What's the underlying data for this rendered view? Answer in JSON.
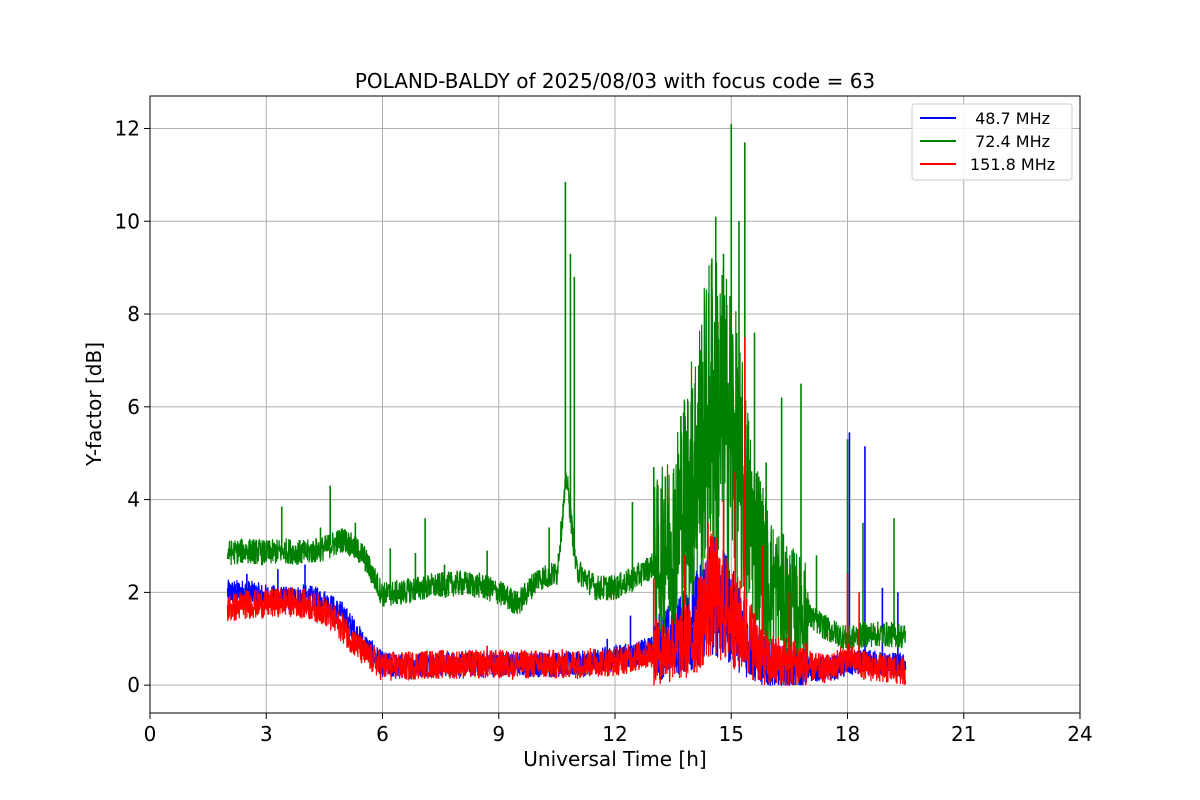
{
  "chart_data": {
    "type": "line",
    "title": "POLAND-BALDY of 2025/08/03 with focus code = 63",
    "xlabel": "Universal Time [h]",
    "ylabel": "Y-factor [dB]",
    "xlim": [
      0,
      24
    ],
    "ylim": [
      -0.6,
      12.7
    ],
    "xticks": [
      0,
      3,
      6,
      9,
      12,
      15,
      18,
      21,
      24
    ],
    "yticks": [
      0,
      2,
      4,
      6,
      8,
      10,
      12
    ],
    "grid": true,
    "legend_position": "top-right",
    "series": [
      {
        "name": " 48.7 MHz",
        "color": "#0000ff",
        "x": [
          2.0,
          2.5,
          3.0,
          3.5,
          4.0,
          4.5,
          5.0,
          5.5,
          6.0,
          6.5,
          7.0,
          8.0,
          9.0,
          10.0,
          11.0,
          11.5,
          12.0,
          12.5,
          13.0,
          13.5,
          14.0,
          14.5,
          15.0,
          15.5,
          16.0,
          16.5,
          17.0,
          17.5,
          18.0,
          18.5,
          19.0,
          19.5
        ],
        "values": [
          2.0,
          2.0,
          1.9,
          1.85,
          1.9,
          1.8,
          1.5,
          0.9,
          0.45,
          0.4,
          0.45,
          0.45,
          0.45,
          0.45,
          0.45,
          0.5,
          0.6,
          0.65,
          0.8,
          1.0,
          1.3,
          2.0,
          1.5,
          0.8,
          0.4,
          0.35,
          0.35,
          0.35,
          0.45,
          0.5,
          0.45,
          0.4
        ],
        "spikes": [
          [
            2.5,
            2.4
          ],
          [
            3.3,
            2.5
          ],
          [
            4.0,
            2.6
          ],
          [
            11.8,
            1.0
          ],
          [
            12.4,
            1.5
          ],
          [
            13.0,
            2.2
          ],
          [
            13.5,
            2.5
          ],
          [
            14.0,
            2.8
          ],
          [
            18.05,
            5.45
          ],
          [
            18.45,
            5.15
          ],
          [
            18.9,
            2.1
          ],
          [
            19.3,
            2.0
          ]
        ]
      },
      {
        "name": " 72.4 MHz",
        "color": "#008000",
        "x": [
          2.0,
          2.5,
          3.0,
          3.5,
          4.0,
          4.5,
          5.0,
          5.5,
          6.0,
          6.5,
          7.0,
          7.5,
          8.0,
          8.5,
          9.0,
          9.5,
          10.0,
          10.5,
          10.75,
          11.0,
          11.5,
          12.0,
          12.5,
          13.0,
          13.5,
          14.0,
          14.5,
          15.0,
          15.5,
          16.0,
          16.5,
          17.0,
          17.5,
          18.0,
          18.5,
          19.0,
          19.5
        ],
        "values": [
          2.85,
          2.9,
          2.85,
          2.9,
          2.85,
          2.95,
          3.15,
          2.8,
          1.95,
          2.0,
          2.1,
          2.15,
          2.2,
          2.15,
          2.0,
          1.75,
          2.3,
          2.4,
          4.5,
          2.5,
          2.1,
          2.1,
          2.3,
          2.6,
          3.2,
          4.5,
          6.0,
          5.5,
          3.5,
          2.2,
          1.8,
          1.5,
          1.2,
          1.0,
          1.1,
          1.1,
          1.05
        ],
        "spikes": [
          [
            3.4,
            3.85
          ],
          [
            4.65,
            4.3
          ],
          [
            4.4,
            3.4
          ],
          [
            5.3,
            3.5
          ],
          [
            6.2,
            2.95
          ],
          [
            6.85,
            2.85
          ],
          [
            7.1,
            3.6
          ],
          [
            7.6,
            2.6
          ],
          [
            8.7,
            2.9
          ],
          [
            10.3,
            3.4
          ],
          [
            10.72,
            10.85
          ],
          [
            10.85,
            9.3
          ],
          [
            10.95,
            8.8
          ],
          [
            12.45,
            3.95
          ],
          [
            13.0,
            4.7
          ],
          [
            13.3,
            4.5
          ],
          [
            13.7,
            5.8
          ],
          [
            14.0,
            6.4
          ],
          [
            14.2,
            7.0
          ],
          [
            14.5,
            9.2
          ],
          [
            14.6,
            10.1
          ],
          [
            14.8,
            9.3
          ],
          [
            15.0,
            12.1
          ],
          [
            15.2,
            10.0
          ],
          [
            15.35,
            11.7
          ],
          [
            15.6,
            7.6
          ],
          [
            15.9,
            4.8
          ],
          [
            16.3,
            6.2
          ],
          [
            16.8,
            6.5
          ],
          [
            17.2,
            2.8
          ],
          [
            18.0,
            5.3
          ],
          [
            18.4,
            3.5
          ],
          [
            19.2,
            3.6
          ]
        ]
      },
      {
        "name": "151.8 MHz",
        "color": "#ff0000",
        "x": [
          2.0,
          2.5,
          3.0,
          3.5,
          4.0,
          4.5,
          5.0,
          5.5,
          6.0,
          6.5,
          7.0,
          8.0,
          9.0,
          10.0,
          11.0,
          11.5,
          12.0,
          12.5,
          13.0,
          13.5,
          14.0,
          14.5,
          15.0,
          15.5,
          16.0,
          16.5,
          17.0,
          17.5,
          18.0,
          18.5,
          19.0,
          19.5
        ],
        "values": [
          1.65,
          1.75,
          1.75,
          1.8,
          1.75,
          1.6,
          1.2,
          0.7,
          0.4,
          0.4,
          0.45,
          0.45,
          0.45,
          0.45,
          0.45,
          0.5,
          0.5,
          0.6,
          0.7,
          0.8,
          1.0,
          2.0,
          1.5,
          1.0,
          0.5,
          0.5,
          0.4,
          0.35,
          0.6,
          0.4,
          0.35,
          0.3
        ],
        "spikes": [
          [
            8.7,
            0.85
          ],
          [
            13.0,
            2.3
          ],
          [
            13.8,
            2.8
          ],
          [
            14.4,
            3.5
          ],
          [
            14.8,
            4.0
          ],
          [
            15.1,
            4.6
          ],
          [
            15.35,
            7.5
          ],
          [
            15.8,
            3.0
          ],
          [
            16.5,
            2.0
          ],
          [
            18.0,
            2.4
          ],
          [
            18.3,
            2.0
          ]
        ]
      }
    ]
  }
}
